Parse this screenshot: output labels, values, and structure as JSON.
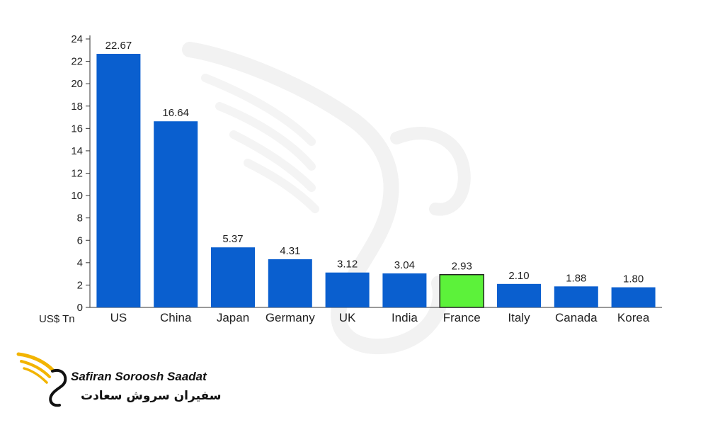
{
  "chart_data": {
    "type": "bar",
    "title": "",
    "xlabel": "",
    "ylabel": "US$ Tn",
    "ylim": [
      0,
      24
    ],
    "yticks": [
      0,
      2,
      4,
      6,
      8,
      10,
      12,
      14,
      16,
      18,
      20,
      22,
      24
    ],
    "grid": false,
    "categories": [
      "US",
      "China",
      "Japan",
      "Germany",
      "UK",
      "India",
      "France",
      "Italy",
      "Canada",
      "Korea"
    ],
    "values": [
      22.67,
      16.64,
      5.37,
      4.31,
      3.12,
      3.04,
      2.93,
      2.1,
      1.88,
      1.8
    ],
    "value_labels": [
      "22.67",
      "16.64",
      "5.37",
      "4.31",
      "3.12",
      "3.04",
      "2.93",
      "2.10",
      "1.88",
      "1.80"
    ],
    "highlight_category": "France"
  },
  "colors": {
    "bar": "#0a5fcf",
    "highlight": "#5cf23a",
    "axis": "#333333",
    "logo_gold": "#f2b400"
  },
  "watermark": {
    "icon": "swan-wing-watermark-icon"
  },
  "brand": {
    "name_en": "Safiran Soroosh Saadat",
    "name_fa": "سفیران سروش سعادت",
    "icon": "swan-wing-logo-icon"
  }
}
